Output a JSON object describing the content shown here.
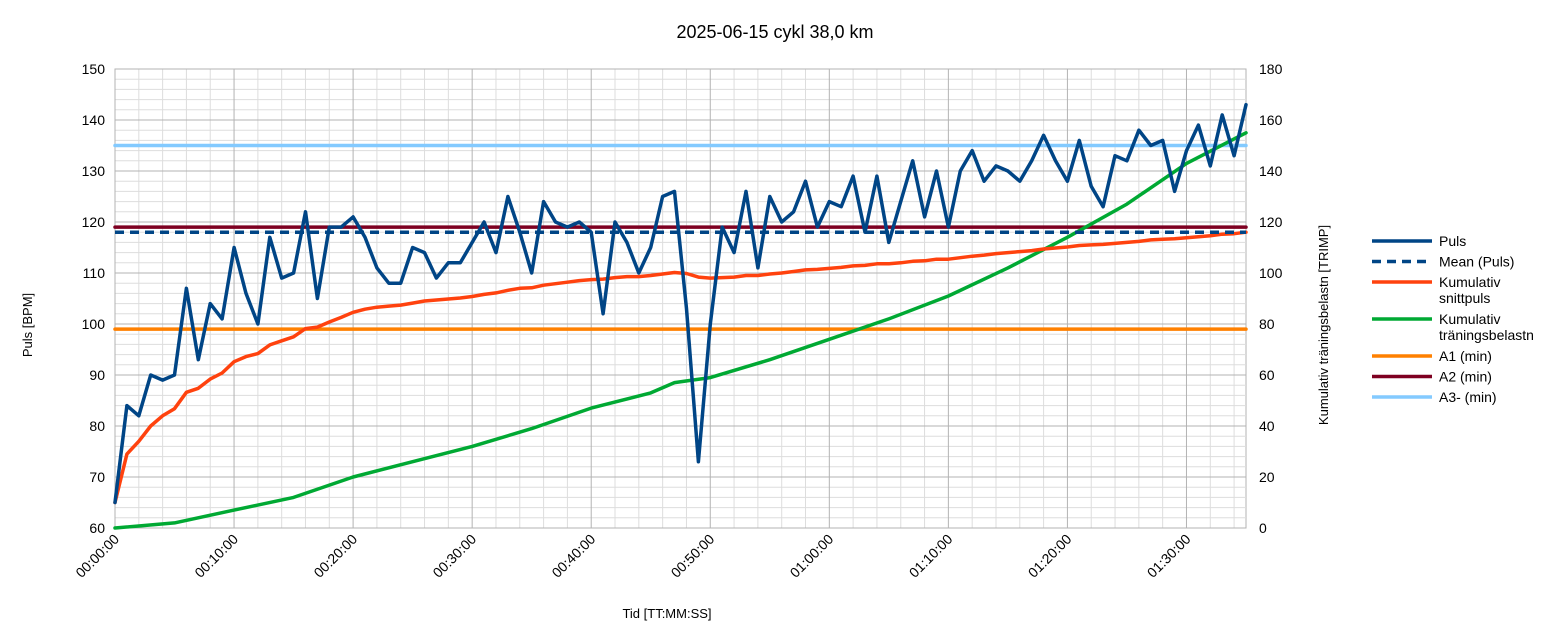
{
  "chart_data": {
    "type": "line",
    "title": "2025-06-15 cykl 38,0 km",
    "xlabel": "Tid [TT:MM:SS]",
    "ylabel": "Puls [BPM]",
    "y2label": "Kumulativ träningsbelastn [TRIMP]",
    "xlim_minutes": [
      0,
      95
    ],
    "ylim": [
      60,
      150
    ],
    "y2lim": [
      0,
      180
    ],
    "x_tick_labels": [
      "00:00:00",
      "00:10:00",
      "00:20:00",
      "00:30:00",
      "00:40:00",
      "00:50:00",
      "01:00:00",
      "01:10:00",
      "01:20:00",
      "01:30:00"
    ],
    "y_tick_labels": [
      "60",
      "70",
      "80",
      "90",
      "100",
      "110",
      "120",
      "130",
      "140",
      "150"
    ],
    "y2_tick_labels": [
      "0",
      "20",
      "40",
      "60",
      "80",
      "100",
      "120",
      "140",
      "160",
      "180"
    ],
    "grid": true,
    "legend_position": "right",
    "series": [
      {
        "name": "Puls",
        "axis": "left",
        "color": "#004586",
        "style": "solid",
        "x_minutes": [
          0,
          1,
          2,
          3,
          4,
          5,
          6,
          7,
          8,
          9,
          10,
          11,
          12,
          13,
          14,
          15,
          16,
          17,
          18,
          19,
          20,
          21,
          22,
          23,
          24,
          25,
          26,
          27,
          28,
          29,
          30,
          31,
          32,
          33,
          34,
          35,
          36,
          37,
          38,
          39,
          40,
          41,
          42,
          43,
          44,
          45,
          46,
          47,
          48,
          49,
          50,
          51,
          52,
          53,
          54,
          55,
          56,
          57,
          58,
          59,
          60,
          61,
          62,
          63,
          64,
          65,
          66,
          67,
          68,
          69,
          70,
          71,
          72,
          73,
          74,
          75,
          76,
          77,
          78,
          79,
          80,
          81,
          82,
          83,
          84,
          85,
          86,
          87,
          88,
          89,
          90,
          91,
          92,
          93,
          94,
          95
        ],
        "values": [
          65,
          84,
          82,
          90,
          89,
          90,
          107,
          93,
          104,
          101,
          115,
          106,
          100,
          117,
          109,
          110,
          122,
          105,
          119,
          119,
          121,
          117,
          111,
          108,
          108,
          115,
          114,
          109,
          112,
          112,
          116,
          120,
          114,
          125,
          118,
          110,
          124,
          120,
          119,
          120,
          118,
          102,
          120,
          116,
          110,
          115,
          125,
          126,
          103,
          73,
          100,
          119,
          114,
          126,
          111,
          125,
          120,
          122,
          128,
          119,
          124,
          123,
          129,
          118,
          129,
          116,
          124,
          132,
          121,
          130,
          119,
          130,
          134,
          128,
          131,
          130,
          128,
          132,
          137,
          132,
          128,
          136,
          127,
          123,
          133,
          132,
          138,
          135,
          136,
          126,
          134,
          139,
          131,
          141,
          133,
          143
        ]
      },
      {
        "name": "Mean (Puls)",
        "axis": "left",
        "color": "#004586",
        "style": "dashed",
        "x_minutes": [
          0,
          95
        ],
        "values": [
          118,
          118
        ]
      },
      {
        "name": "Kumulativ snittpuls",
        "axis": "left",
        "color": "#ff420e",
        "style": "solid",
        "x_minutes": [
          0,
          1,
          2,
          3,
          4,
          5,
          6,
          7,
          8,
          9,
          10,
          11,
          12,
          13,
          14,
          15,
          16,
          17,
          18,
          19,
          20,
          21,
          22,
          23,
          24,
          25,
          26,
          27,
          28,
          29,
          30,
          31,
          32,
          33,
          34,
          35,
          36,
          37,
          38,
          39,
          40,
          41,
          42,
          43,
          44,
          45,
          46,
          47,
          48,
          49,
          50,
          51,
          52,
          53,
          54,
          55,
          56,
          57,
          58,
          59,
          60,
          61,
          62,
          63,
          64,
          65,
          66,
          67,
          68,
          69,
          70,
          71,
          72,
          73,
          74,
          75,
          76,
          77,
          78,
          79,
          80,
          81,
          82,
          83,
          84,
          85,
          86,
          87,
          88,
          89,
          90,
          91,
          92,
          93,
          94,
          95
        ],
        "values": [
          65,
          74.5,
          77,
          80,
          82,
          83.4,
          86.6,
          87.4,
          89.2,
          90.4,
          92.6,
          93.6,
          94.2,
          95.9,
          96.7,
          97.5,
          99.1,
          99.4,
          100.4,
          101.3,
          102.3,
          102.9,
          103.3,
          103.5,
          103.7,
          104.1,
          104.5,
          104.7,
          104.9,
          105.1,
          105.4,
          105.8,
          106.1,
          106.6,
          107,
          107.1,
          107.6,
          107.9,
          108.2,
          108.5,
          108.7,
          108.8,
          109.1,
          109.3,
          109.3,
          109.5,
          109.8,
          110.1,
          109.9,
          109.2,
          109,
          109.1,
          109.2,
          109.5,
          109.5,
          109.8,
          110,
          110.3,
          110.6,
          110.7,
          110.9,
          111.1,
          111.4,
          111.5,
          111.8,
          111.8,
          112,
          112.3,
          112.4,
          112.7,
          112.7,
          113,
          113.3,
          113.5,
          113.8,
          114,
          114.2,
          114.4,
          114.7,
          114.9,
          115.1,
          115.4,
          115.5,
          115.6,
          115.8,
          116,
          116.2,
          116.5,
          116.6,
          116.7,
          116.9,
          117.1,
          117.3,
          117.6,
          117.7,
          118
        ]
      },
      {
        "name": "Kumulativ träningsbelastn",
        "axis": "right",
        "color": "#00a933",
        "style": "solid",
        "x_minutes": [
          0,
          5,
          10,
          15,
          20,
          25,
          30,
          35,
          40,
          45,
          47,
          50,
          55,
          60,
          65,
          70,
          75,
          80,
          85,
          90,
          95
        ],
        "values": [
          0,
          2,
          7,
          12,
          20,
          26,
          32,
          39,
          47,
          53,
          57,
          59,
          66,
          74,
          82,
          91,
          102,
          114,
          127,
          143,
          155
        ]
      },
      {
        "name": "A1 (min)",
        "axis": "left",
        "color": "#ff8000",
        "style": "solid",
        "x_minutes": [
          0,
          95
        ],
        "values": [
          99,
          99
        ]
      },
      {
        "name": "A2 (min)",
        "axis": "left",
        "color": "#7e0021",
        "style": "solid",
        "x_minutes": [
          0,
          95
        ],
        "values": [
          119,
          119
        ]
      },
      {
        "name": "A3- (min)",
        "axis": "left",
        "color": "#83caff",
        "style": "solid",
        "x_minutes": [
          0,
          95
        ],
        "values": [
          135,
          135
        ]
      }
    ],
    "legend": [
      {
        "label_lines": [
          "Puls"
        ],
        "color": "#004586",
        "style": "solid"
      },
      {
        "label_lines": [
          "Mean (Puls)"
        ],
        "color": "#004586",
        "style": "dashed"
      },
      {
        "label_lines": [
          "Kumulativ",
          "snittpuls"
        ],
        "color": "#ff420e",
        "style": "solid"
      },
      {
        "label_lines": [
          "Kumulativ",
          "träningsbelastn"
        ],
        "color": "#00a933",
        "style": "solid"
      },
      {
        "label_lines": [
          "A1 (min)"
        ],
        "color": "#ff8000",
        "style": "solid"
      },
      {
        "label_lines": [
          "A2 (min)"
        ],
        "color": "#7e0021",
        "style": "solid"
      },
      {
        "label_lines": [
          "A3- (min)"
        ],
        "color": "#83caff",
        "style": "solid"
      }
    ]
  }
}
